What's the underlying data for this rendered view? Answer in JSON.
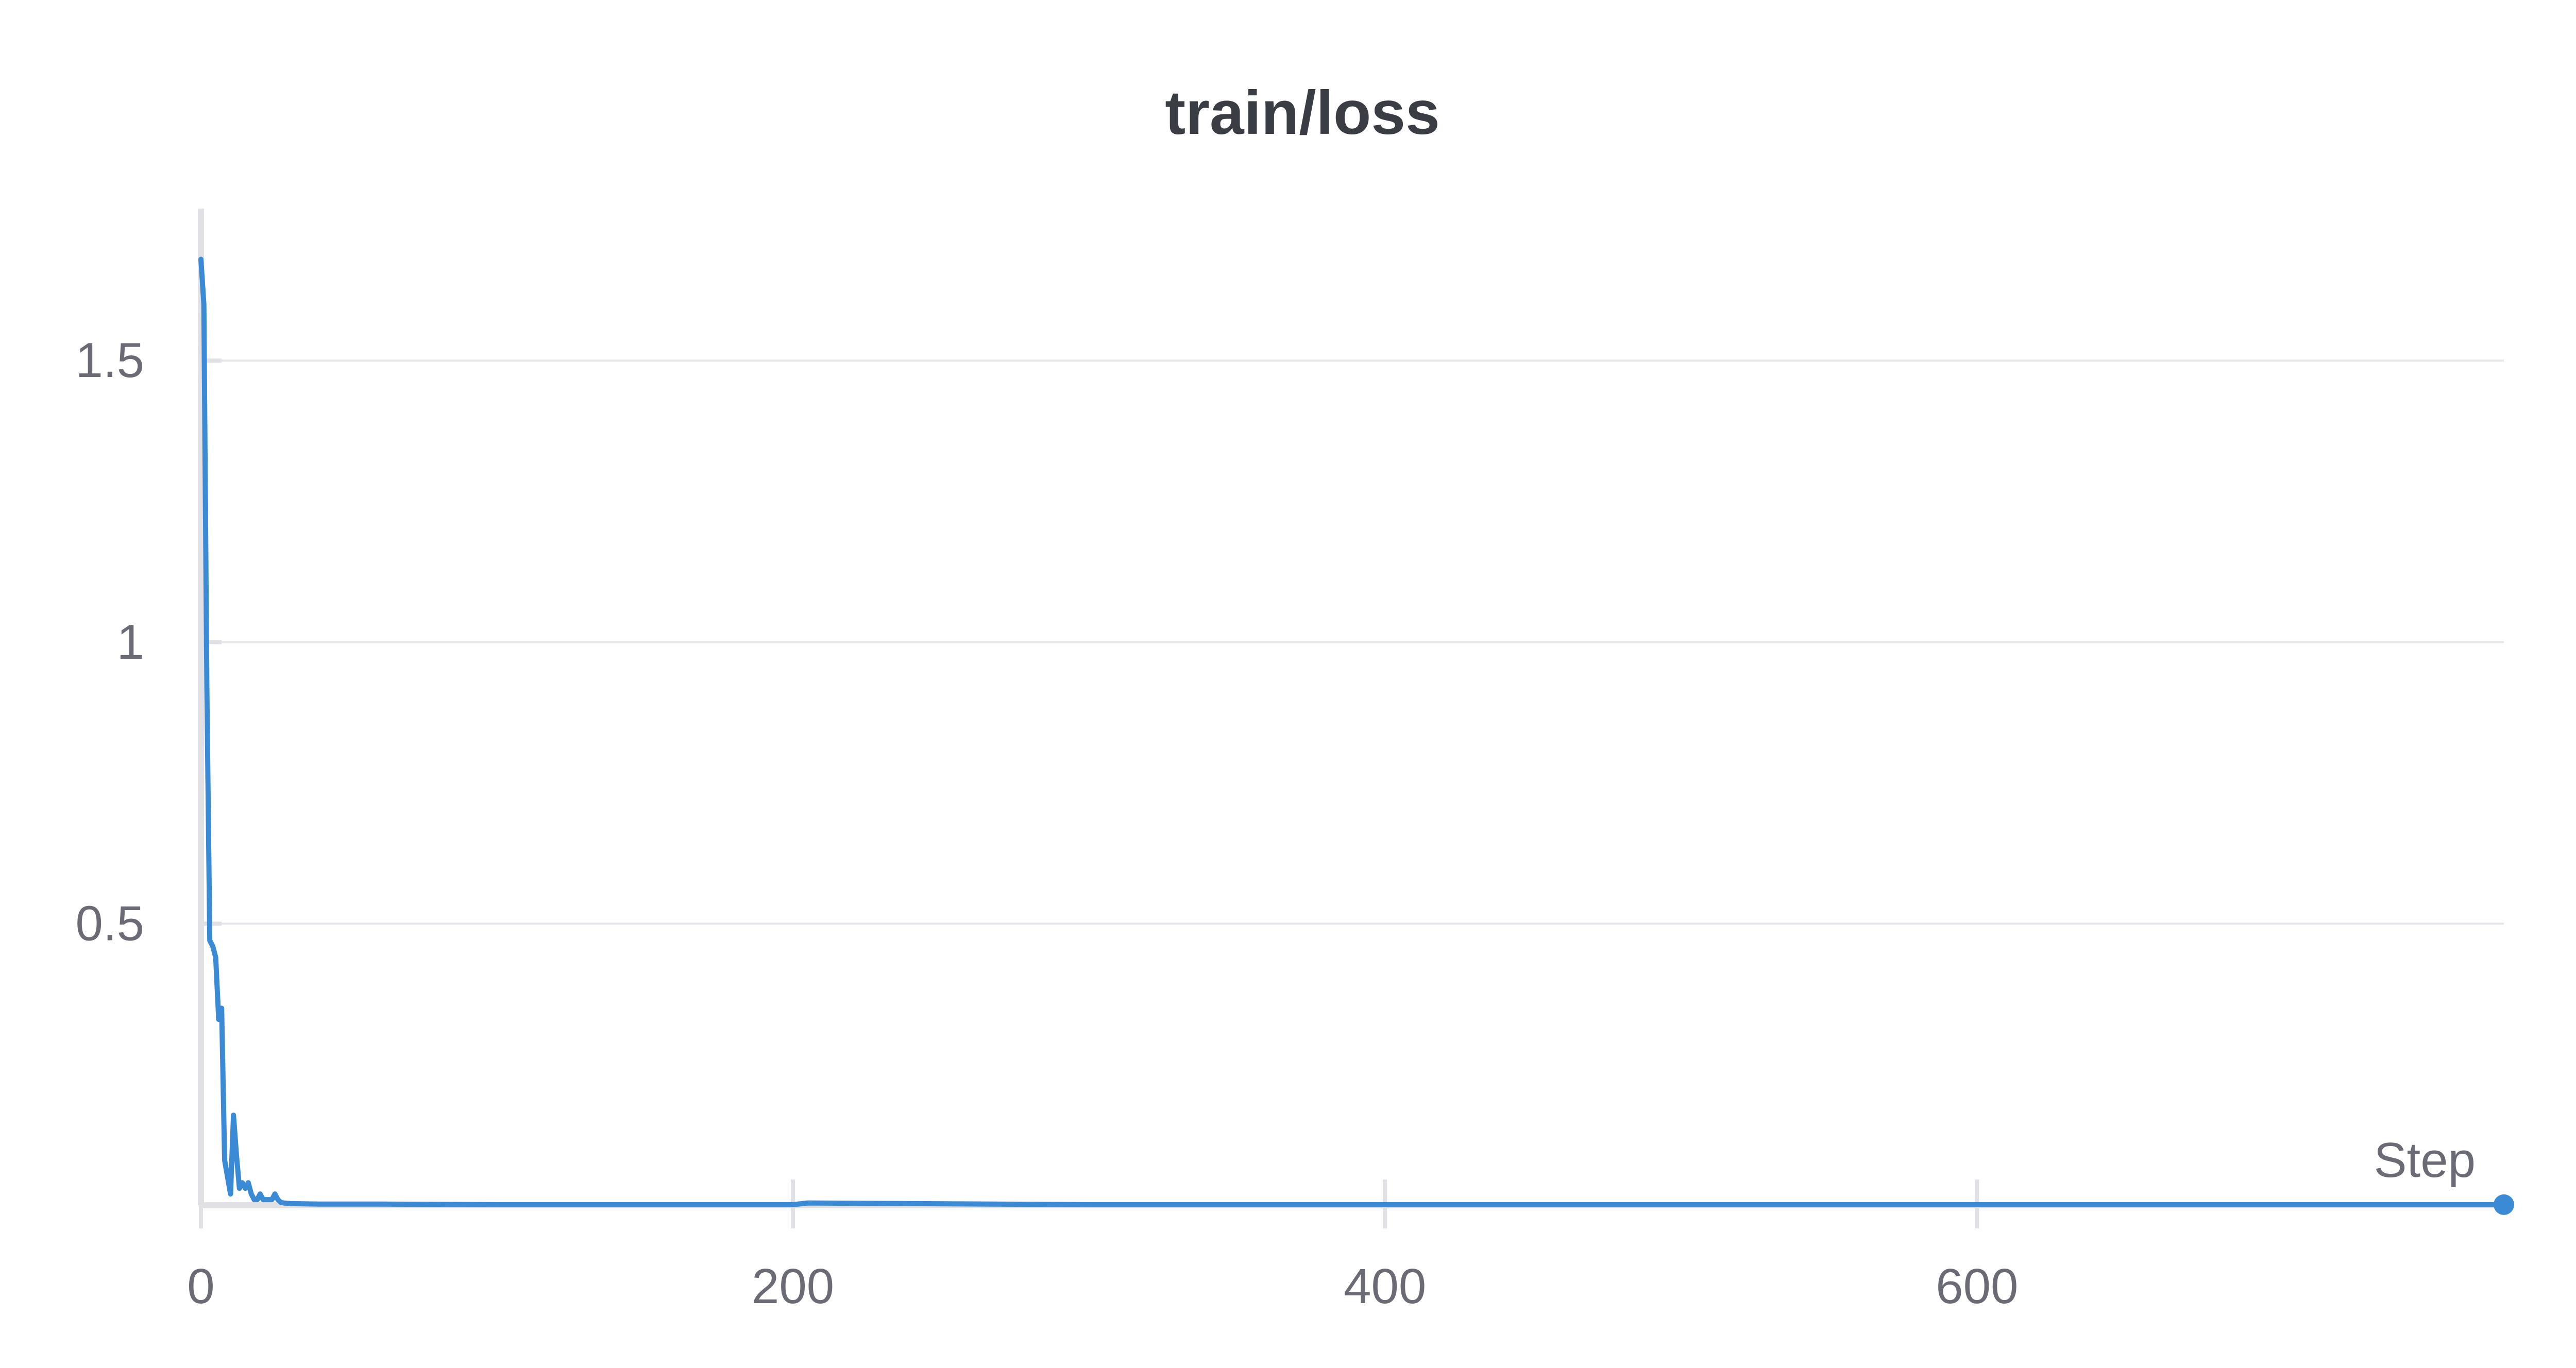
{
  "chart_data": {
    "type": "line",
    "title": "train/loss",
    "xlabel": "Step",
    "ylabel": "",
    "xlim": [
      0,
      778
    ],
    "ylim": [
      0,
      1.77
    ],
    "xticks": [
      0,
      200,
      400,
      600
    ],
    "yticks": [
      0.5,
      1,
      1.5
    ],
    "ytick_labels": [
      "0.5",
      "1",
      "1.5"
    ],
    "xtick_labels": [
      "0",
      "200",
      "400",
      "600"
    ],
    "grid": true,
    "colors": {
      "series": "#3a8ad6"
    },
    "series": [
      {
        "x": [
          0,
          1,
          2,
          3,
          4,
          5,
          6,
          7,
          8,
          9,
          10,
          11,
          12,
          13,
          14,
          15,
          16,
          17,
          18,
          19,
          20,
          21,
          22,
          23,
          24,
          25,
          26,
          27,
          28,
          30,
          40,
          60,
          100,
          200,
          205,
          300,
          400,
          500,
          600,
          700,
          778
        ],
        "y": [
          1.68,
          1.6,
          0.92,
          0.47,
          0.46,
          0.44,
          0.33,
          0.35,
          0.08,
          0.05,
          0.02,
          0.16,
          0.09,
          0.03,
          0.04,
          0.03,
          0.04,
          0.02,
          0.01,
          0.01,
          0.02,
          0.01,
          0.01,
          0.01,
          0.01,
          0.02,
          0.01,
          0.005,
          0.004,
          0.003,
          0.002,
          0.002,
          0.001,
          0.001,
          0.004,
          0.001,
          0.001,
          0.001,
          0.001,
          0.001,
          0.001
        ]
      }
    ]
  }
}
